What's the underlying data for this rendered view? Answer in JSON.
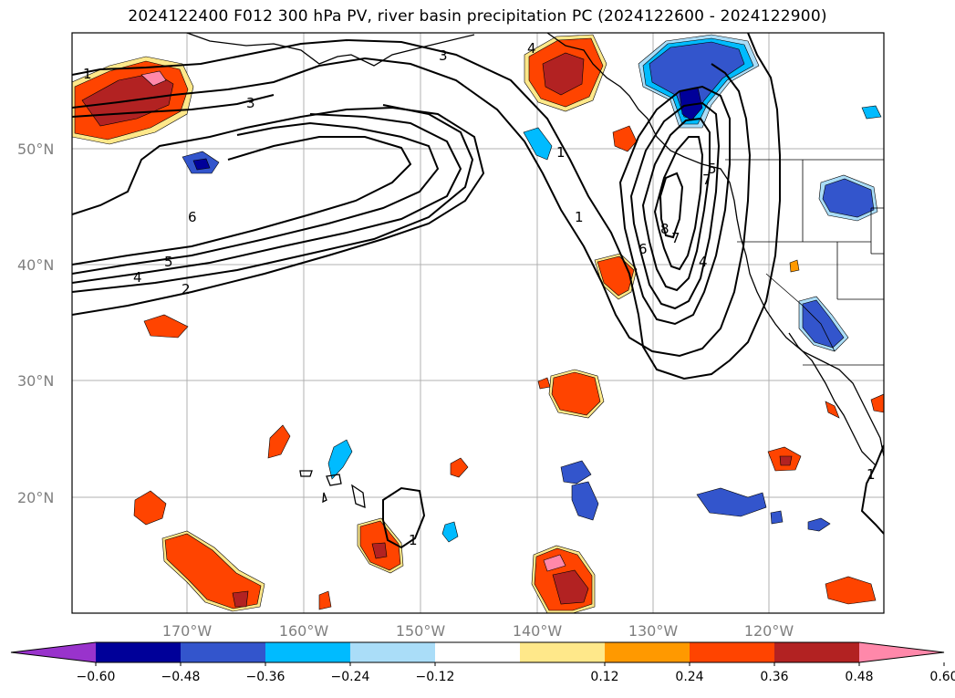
{
  "title": "2024122400 F012 300 hPa PV, river basin precipitation PC (2024122600 - 2024122900)",
  "map": {
    "lat_ticks": [
      "50°N",
      "40°N",
      "30°N",
      "20°N"
    ],
    "lon_ticks": [
      "170°W",
      "160°W",
      "150°W",
      "140°W",
      "130°W",
      "120°W"
    ],
    "pv_contour_labels": [
      "1",
      "3",
      "5",
      "4",
      "2",
      "6",
      "3",
      "1",
      "4",
      "1",
      "8",
      "6",
      "7",
      "7",
      "5",
      "4",
      "1",
      "1"
    ]
  },
  "colorbar": {
    "tick_labels": [
      "−0.60",
      "−0.48",
      "−0.36",
      "−0.24",
      "−0.12",
      "0.12",
      "0.24",
      "0.36",
      "0.48",
      "0.60"
    ],
    "colors": [
      "#9933cc",
      "#000099",
      "#3355cc",
      "#00bbff",
      "#aaddf8",
      "#ffffff",
      "#ffe88a",
      "#ff9900",
      "#ff4400",
      "#b22222",
      "#ff88aa"
    ]
  }
}
